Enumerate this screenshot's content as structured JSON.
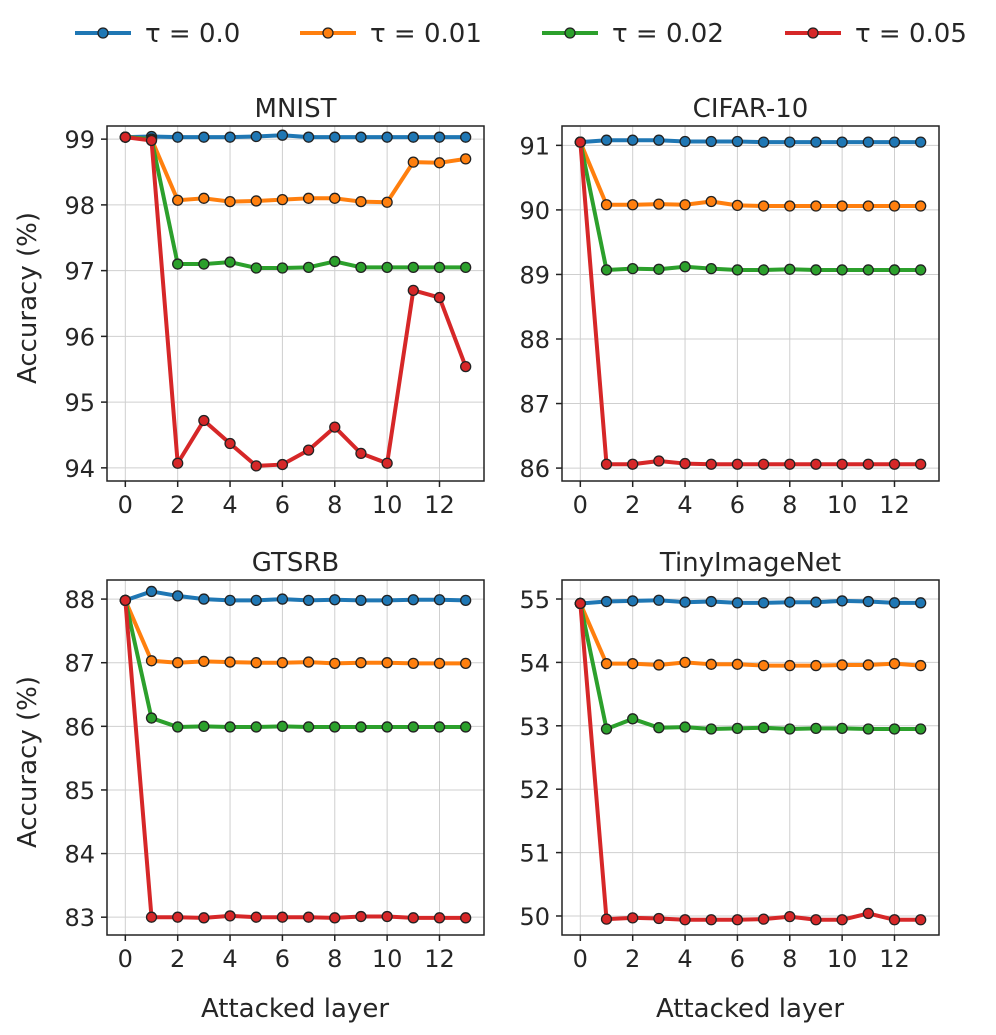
{
  "legend": {
    "items": [
      {
        "label": "τ = 0.0",
        "color": "#1f77b4"
      },
      {
        "label": "τ = 0.01",
        "color": "#ff7f0e"
      },
      {
        "label": "τ = 0.02",
        "color": "#2ca02c"
      },
      {
        "label": "τ = 0.05",
        "color": "#d62728"
      }
    ]
  },
  "shared_xlabel": "Attacked layer",
  "shared_ylabel": "Accuracy (%)",
  "chart_data": [
    {
      "type": "line",
      "title": "MNIST",
      "xlabel": "Attacked layer",
      "ylabel": "Accuracy (%)",
      "x": [
        0,
        1,
        2,
        3,
        4,
        5,
        6,
        7,
        8,
        9,
        10,
        11,
        12,
        13
      ],
      "xlim": [
        -0.7,
        13.7
      ],
      "ylim": [
        93.8,
        99.2
      ],
      "xticks": [
        0,
        2,
        4,
        6,
        8,
        10,
        12
      ],
      "yticks": [
        94,
        95,
        96,
        97,
        98,
        99
      ],
      "grid": true,
      "series": [
        {
          "name": "τ = 0.0",
          "values": [
            99.03,
            99.04,
            99.03,
            99.03,
            99.03,
            99.04,
            99.06,
            99.03,
            99.03,
            99.03,
            99.03,
            99.03,
            99.03,
            99.03
          ]
        },
        {
          "name": "τ = 0.01",
          "values": [
            99.03,
            99.0,
            98.07,
            98.1,
            98.05,
            98.06,
            98.08,
            98.1,
            98.1,
            98.05,
            98.04,
            98.65,
            98.64,
            98.7
          ]
        },
        {
          "name": "τ = 0.02",
          "values": [
            99.03,
            99.0,
            97.1,
            97.1,
            97.13,
            97.04,
            97.04,
            97.05,
            97.14,
            97.05,
            97.05,
            97.05,
            97.05,
            97.05
          ]
        },
        {
          "name": "τ = 0.05",
          "values": [
            99.03,
            98.98,
            94.07,
            94.72,
            94.37,
            94.03,
            94.05,
            94.27,
            94.62,
            94.22,
            94.07,
            96.7,
            96.59,
            95.54
          ]
        }
      ]
    },
    {
      "type": "line",
      "title": "CIFAR-10",
      "xlabel": "Attacked layer",
      "ylabel": "",
      "x": [
        0,
        1,
        2,
        3,
        4,
        5,
        6,
        7,
        8,
        9,
        10,
        11,
        12,
        13
      ],
      "xlim": [
        -0.7,
        13.7
      ],
      "ylim": [
        85.8,
        91.3
      ],
      "xticks": [
        0,
        2,
        4,
        6,
        8,
        10,
        12
      ],
      "yticks": [
        86,
        87,
        88,
        89,
        90,
        91
      ],
      "grid": true,
      "series": [
        {
          "name": "τ = 0.0",
          "values": [
            91.05,
            91.08,
            91.08,
            91.08,
            91.06,
            91.06,
            91.06,
            91.05,
            91.05,
            91.05,
            91.05,
            91.05,
            91.05,
            91.05
          ]
        },
        {
          "name": "τ = 0.01",
          "values": [
            91.05,
            90.08,
            90.08,
            90.09,
            90.08,
            90.13,
            90.07,
            90.06,
            90.06,
            90.06,
            90.06,
            90.06,
            90.06,
            90.06
          ]
        },
        {
          "name": "τ = 0.02",
          "values": [
            91.05,
            89.07,
            89.09,
            89.08,
            89.12,
            89.09,
            89.07,
            89.07,
            89.08,
            89.07,
            89.07,
            89.07,
            89.07,
            89.07
          ]
        },
        {
          "name": "τ = 0.05",
          "values": [
            91.05,
            86.06,
            86.06,
            86.11,
            86.07,
            86.06,
            86.06,
            86.06,
            86.06,
            86.06,
            86.06,
            86.06,
            86.06,
            86.06
          ]
        }
      ]
    },
    {
      "type": "line",
      "title": "GTSRB",
      "xlabel": "Attacked layer",
      "ylabel": "Accuracy (%)",
      "x": [
        0,
        1,
        2,
        3,
        4,
        5,
        6,
        7,
        8,
        9,
        10,
        11,
        12,
        13
      ],
      "xlim": [
        -0.7,
        13.7
      ],
      "ylim": [
        82.72,
        88.3
      ],
      "xticks": [
        0,
        2,
        4,
        6,
        8,
        10,
        12
      ],
      "yticks": [
        83,
        84,
        85,
        86,
        87,
        88
      ],
      "grid": true,
      "series": [
        {
          "name": "τ = 0.0",
          "values": [
            87.98,
            88.12,
            88.05,
            88.0,
            87.98,
            87.98,
            88.0,
            87.98,
            87.99,
            87.98,
            87.98,
            87.99,
            87.99,
            87.98
          ]
        },
        {
          "name": "τ = 0.01",
          "values": [
            87.98,
            87.03,
            87.0,
            87.02,
            87.01,
            87.0,
            87.0,
            87.01,
            86.99,
            87.0,
            87.0,
            86.99,
            86.99,
            86.99
          ]
        },
        {
          "name": "τ = 0.02",
          "values": [
            87.98,
            86.13,
            85.99,
            86.0,
            85.99,
            85.99,
            86.0,
            85.99,
            85.99,
            85.99,
            85.99,
            85.99,
            85.99,
            85.99
          ]
        },
        {
          "name": "τ = 0.05",
          "values": [
            87.98,
            83.0,
            83.0,
            82.99,
            83.02,
            83.0,
            83.0,
            83.0,
            82.99,
            83.01,
            83.01,
            82.99,
            82.99,
            82.99
          ]
        }
      ]
    },
    {
      "type": "line",
      "title": "TinyImageNet",
      "xlabel": "Attacked layer",
      "ylabel": "",
      "x": [
        0,
        1,
        2,
        3,
        4,
        5,
        6,
        7,
        8,
        9,
        10,
        11,
        12,
        13
      ],
      "xlim": [
        -0.7,
        13.7
      ],
      "ylim": [
        49.7,
        55.3
      ],
      "xticks": [
        0,
        2,
        4,
        6,
        8,
        10,
        12
      ],
      "yticks": [
        50,
        51,
        52,
        53,
        54,
        55
      ],
      "grid": true,
      "series": [
        {
          "name": "τ = 0.0",
          "values": [
            54.93,
            54.96,
            54.97,
            54.98,
            54.95,
            54.96,
            54.94,
            54.94,
            54.95,
            54.95,
            54.97,
            54.96,
            54.94,
            54.94
          ]
        },
        {
          "name": "τ = 0.01",
          "values": [
            54.93,
            53.98,
            53.98,
            53.96,
            54.0,
            53.97,
            53.97,
            53.95,
            53.95,
            53.95,
            53.96,
            53.96,
            53.98,
            53.95
          ]
        },
        {
          "name": "τ = 0.02",
          "values": [
            54.93,
            52.95,
            53.11,
            52.97,
            52.98,
            52.95,
            52.96,
            52.97,
            52.95,
            52.96,
            52.96,
            52.95,
            52.95,
            52.95
          ]
        },
        {
          "name": "τ = 0.05",
          "values": [
            54.93,
            49.95,
            49.97,
            49.96,
            49.94,
            49.94,
            49.94,
            49.95,
            49.99,
            49.94,
            49.94,
            50.04,
            49.94,
            49.94
          ]
        }
      ]
    }
  ]
}
